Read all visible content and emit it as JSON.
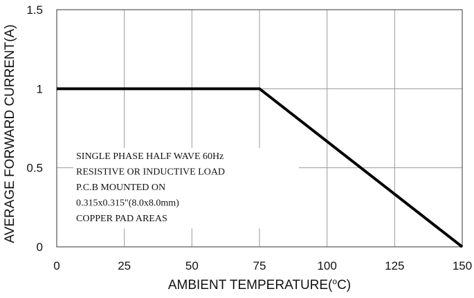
{
  "chart_data": {
    "type": "line",
    "title": "",
    "xlabel": "AMBIENT TEMPERATURE(",
    "xlabel_sup": "o",
    "xlabel_end": "C)",
    "ylabel": "AVERAGE FORWARD CURRENT(A)",
    "xlim": [
      0,
      150
    ],
    "ylim": [
      0,
      1.5
    ],
    "x_ticks": [
      0,
      25,
      50,
      75,
      100,
      125,
      150
    ],
    "y_ticks": [
      0,
      0.5,
      1,
      1.5
    ],
    "x_tick_labels": [
      "0",
      "25",
      "50",
      "75",
      "100",
      "125",
      "150"
    ],
    "y_tick_labels": [
      "0",
      "0.5",
      "1",
      "1.5"
    ],
    "grid": true,
    "series": [
      {
        "x": [
          0,
          75,
          150
        ],
        "y": [
          1,
          1,
          0
        ]
      }
    ],
    "annotation": [
      "SINGLE PHASE HALF WAVE 60Hz",
      "RESISTIVE OR INDUCTIVE LOAD",
      "P.C.B MOUNTED ON",
      "0.315x0.315\"(8.0x8.0mm)",
      "COPPER PAD AREAS"
    ]
  }
}
